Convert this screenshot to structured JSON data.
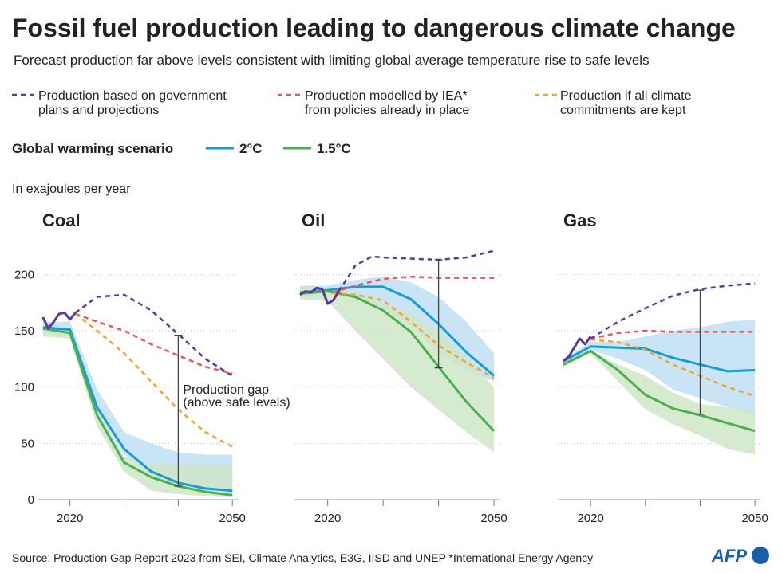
{
  "title": "Fossil fuel production leading to dangerous climate change",
  "subtitle": "Forecast production far above levels consistent with limiting global average temperature rise to safe levels",
  "legend": {
    "items": [
      {
        "label": [
          "Production based on government",
          "plans and projections"
        ],
        "color": "#5b3a96"
      },
      {
        "label": [
          "Production modelled by IEA*",
          "from policies already in place"
        ],
        "color": "#e8545f"
      },
      {
        "label": [
          "Production if all climate",
          "commitments are kept"
        ],
        "color": "#f2a527"
      }
    ],
    "scenario_title": "Global warming scenario",
    "scenarios": [
      {
        "label": "2°C",
        "color": "#1a9bd7"
      },
      {
        "label": "1.5°C",
        "color": "#4caf50"
      }
    ]
  },
  "unit": "In exajoules per year",
  "source": "Source: Production Gap Report 2023 from SEI, Climate Analytics, E3G, IISD and UNEP  *International Energy Agency",
  "logo": "AFP",
  "chart_data": [
    {
      "type": "line",
      "title": "Coal",
      "xlim": [
        2014,
        2051
      ],
      "xticks": [
        2020,
        {
          "value": 2030,
          "label": null
        },
        {
          "value": 2040,
          "label": null
        },
        2050
      ],
      "ylim": [
        0,
        225
      ],
      "yticks": [
        0,
        50,
        100,
        150,
        200
      ],
      "grid": true,
      "bands": [
        {
          "color": "#bfe0f3",
          "x": [
            2015,
            2020,
            2025,
            2030,
            2035,
            2040,
            2045,
            2050
          ],
          "upper": [
            158,
            158,
            98,
            60,
            50,
            42,
            40,
            40
          ],
          "lower": [
            148,
            145,
            78,
            40,
            22,
            12,
            8,
            6
          ]
        },
        {
          "color": "#cfe6c8",
          "x": [
            2015,
            2020,
            2025,
            2030,
            2035,
            2040,
            2045,
            2050
          ],
          "upper": [
            152,
            150,
            80,
            38,
            32,
            30,
            32,
            30
          ],
          "lower": [
            145,
            143,
            65,
            25,
            8,
            5,
            3,
            2
          ]
        }
      ],
      "series": [
        {
          "color": "#1a9bd7",
          "dash": false,
          "x": [
            2015,
            2020,
            2025,
            2030,
            2035,
            2040,
            2045,
            2050
          ],
          "values": [
            153,
            151,
            82,
            45,
            25,
            15,
            10,
            8
          ]
        },
        {
          "color": "#4caf50",
          "dash": false,
          "x": [
            2015,
            2020,
            2025,
            2030,
            2035,
            2040,
            2045,
            2050
          ],
          "values": [
            152,
            148,
            75,
            33,
            20,
            12,
            7,
            4
          ]
        },
        {
          "color": "#e8545f",
          "dash": true,
          "x": [
            2021,
            2025,
            2030,
            2035,
            2040,
            2045,
            2050
          ],
          "values": [
            165,
            158,
            150,
            138,
            128,
            118,
            112
          ]
        },
        {
          "color": "#f2a527",
          "dash": true,
          "x": [
            2021,
            2025,
            2030,
            2035,
            2040,
            2045,
            2050
          ],
          "values": [
            165,
            150,
            130,
            105,
            80,
            60,
            47
          ]
        },
        {
          "color": "#5b3a96",
          "dash": true,
          "x": [
            2021,
            2025,
            2030,
            2035,
            2040,
            2045,
            2050
          ],
          "values": [
            166,
            180,
            182,
            168,
            147,
            125,
            110
          ]
        },
        {
          "color": "#5b3a96",
          "dash": false,
          "x": [
            2015,
            2016,
            2017,
            2018,
            2019,
            2020,
            2021
          ],
          "values": [
            162,
            152,
            158,
            165,
            166,
            160,
            166
          ]
        }
      ],
      "gap": {
        "x": 2040,
        "from": 146,
        "to": 12,
        "text": [
          "Production gap",
          "(above safe levels)"
        ]
      }
    },
    {
      "type": "line",
      "title": "Oil",
      "xlim": [
        2014,
        2051
      ],
      "xticks": [
        2020,
        {
          "value": 2030,
          "label": null
        },
        {
          "value": 2040,
          "label": null
        },
        2050
      ],
      "ylim": [
        0,
        225
      ],
      "yticks": [
        0,
        50,
        100,
        150,
        200
      ],
      "grid": true,
      "bands": [
        {
          "color": "#bfe0f3",
          "x": [
            2015,
            2020,
            2025,
            2030,
            2035,
            2040,
            2045,
            2050
          ],
          "upper": [
            190,
            190,
            195,
            198,
            193,
            180,
            158,
            130
          ],
          "lower": [
            180,
            183,
            178,
            170,
            155,
            130,
            115,
            105
          ]
        },
        {
          "color": "#cfe6c8",
          "x": [
            2015,
            2020,
            2025,
            2030,
            2035,
            2040,
            2045,
            2050
          ],
          "upper": [
            190,
            188,
            183,
            175,
            165,
            150,
            125,
            100
          ],
          "lower": [
            178,
            176,
            150,
            125,
            100,
            80,
            60,
            42
          ]
        }
      ],
      "series": [
        {
          "color": "#1a9bd7",
          "dash": false,
          "x": [
            2015,
            2020,
            2025,
            2030,
            2035,
            2040,
            2045,
            2050
          ],
          "values": [
            184,
            186,
            189,
            189,
            178,
            156,
            131,
            110
          ]
        },
        {
          "color": "#4caf50",
          "dash": false,
          "x": [
            2015,
            2020,
            2025,
            2030,
            2035,
            2040,
            2045,
            2050
          ],
          "values": [
            183,
            185,
            180,
            168,
            149,
            118,
            87,
            61
          ]
        },
        {
          "color": "#e8545f",
          "dash": true,
          "x": [
            2021,
            2025,
            2030,
            2035,
            2040,
            2045,
            2050
          ],
          "values": [
            184,
            190,
            196,
            198,
            197,
            197,
            197
          ]
        },
        {
          "color": "#f2a527",
          "dash": true,
          "x": [
            2021,
            2025,
            2030,
            2035,
            2040,
            2045,
            2050
          ],
          "values": [
            183,
            182,
            177,
            158,
            137,
            122,
            108
          ]
        },
        {
          "color": "#5b3a96",
          "dash": true,
          "x": [
            2022,
            2025,
            2028,
            2030,
            2035,
            2040,
            2045,
            2050
          ],
          "values": [
            185,
            208,
            216,
            215,
            214,
            213,
            215,
            221
          ]
        },
        {
          "color": "#5b3a96",
          "dash": false,
          "x": [
            2015,
            2016,
            2017,
            2018,
            2019,
            2020,
            2021,
            2022
          ],
          "values": [
            182,
            185,
            184,
            188,
            187,
            174,
            177,
            185
          ]
        }
      ],
      "gap": {
        "x": 2040,
        "from": 213,
        "to": 117
      }
    },
    {
      "type": "line",
      "title": "Gas",
      "xlim": [
        2014,
        2051
      ],
      "xticks": [
        2020,
        {
          "value": 2030,
          "label": null
        },
        {
          "value": 2040,
          "label": null
        },
        2050
      ],
      "ylim": [
        0,
        225
      ],
      "yticks": [
        0,
        50,
        100,
        150,
        200
      ],
      "grid": true,
      "bands": [
        {
          "color": "#bfe0f3",
          "x": [
            2015,
            2020,
            2025,
            2030,
            2035,
            2040,
            2045,
            2050
          ],
          "upper": [
            125,
            140,
            140,
            145,
            150,
            153,
            158,
            160
          ],
          "lower": [
            121,
            133,
            125,
            115,
            98,
            90,
            82,
            75
          ]
        },
        {
          "color": "#cfe6c8",
          "x": [
            2015,
            2020,
            2025,
            2030,
            2035,
            2040,
            2045,
            2050
          ],
          "upper": [
            122,
            133,
            120,
            110,
            95,
            85,
            82,
            78
          ],
          "lower": [
            118,
            130,
            105,
            80,
            67,
            57,
            45,
            40
          ]
        }
      ],
      "series": [
        {
          "color": "#1a9bd7",
          "dash": false,
          "x": [
            2015,
            2020,
            2025,
            2030,
            2035,
            2040,
            2045,
            2050
          ],
          "values": [
            123,
            136,
            135,
            134,
            126,
            120,
            114,
            115
          ]
        },
        {
          "color": "#4caf50",
          "dash": false,
          "x": [
            2015,
            2020,
            2025,
            2030,
            2035,
            2040,
            2045,
            2050
          ],
          "values": [
            120,
            132,
            115,
            93,
            81,
            75,
            68,
            61
          ]
        },
        {
          "color": "#e8545f",
          "dash": true,
          "x": [
            2020,
            2025,
            2030,
            2035,
            2040,
            2045,
            2050
          ],
          "values": [
            143,
            148,
            150,
            149,
            149,
            149,
            149
          ]
        },
        {
          "color": "#f2a527",
          "dash": true,
          "x": [
            2020,
            2025,
            2030,
            2035,
            2040,
            2045,
            2050
          ],
          "values": [
            142,
            140,
            133,
            120,
            110,
            100,
            92
          ]
        },
        {
          "color": "#5b3a96",
          "dash": true,
          "x": [
            2020,
            2025,
            2030,
            2035,
            2040,
            2045,
            2050
          ],
          "values": [
            143,
            158,
            170,
            181,
            187,
            190,
            192
          ]
        },
        {
          "color": "#5b3a96",
          "dash": false,
          "x": [
            2015,
            2016,
            2017,
            2018,
            2019,
            2020
          ],
          "values": [
            123,
            127,
            135,
            143,
            138,
            145
          ]
        }
      ],
      "gap": {
        "x": 2040,
        "from": 186,
        "to": 76
      }
    }
  ]
}
